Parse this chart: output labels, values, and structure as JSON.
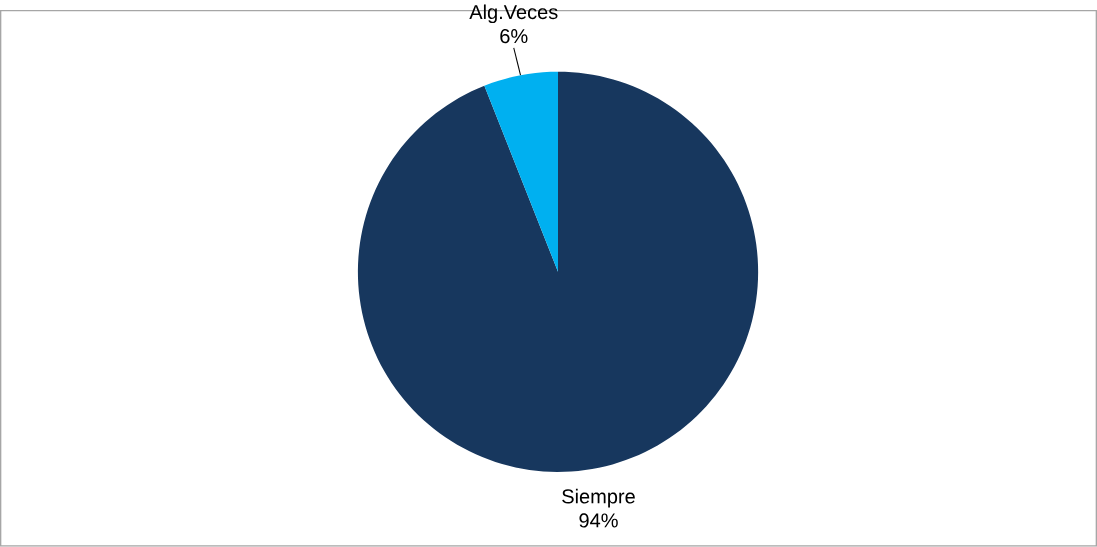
{
  "chart_data": {
    "type": "pie",
    "categories": [
      "Siempre",
      "Alg.Veces"
    ],
    "values": [
      94,
      6
    ],
    "colors": [
      "#17375e",
      "#00b0f0"
    ],
    "value_labels": [
      "94%",
      "6%"
    ]
  }
}
